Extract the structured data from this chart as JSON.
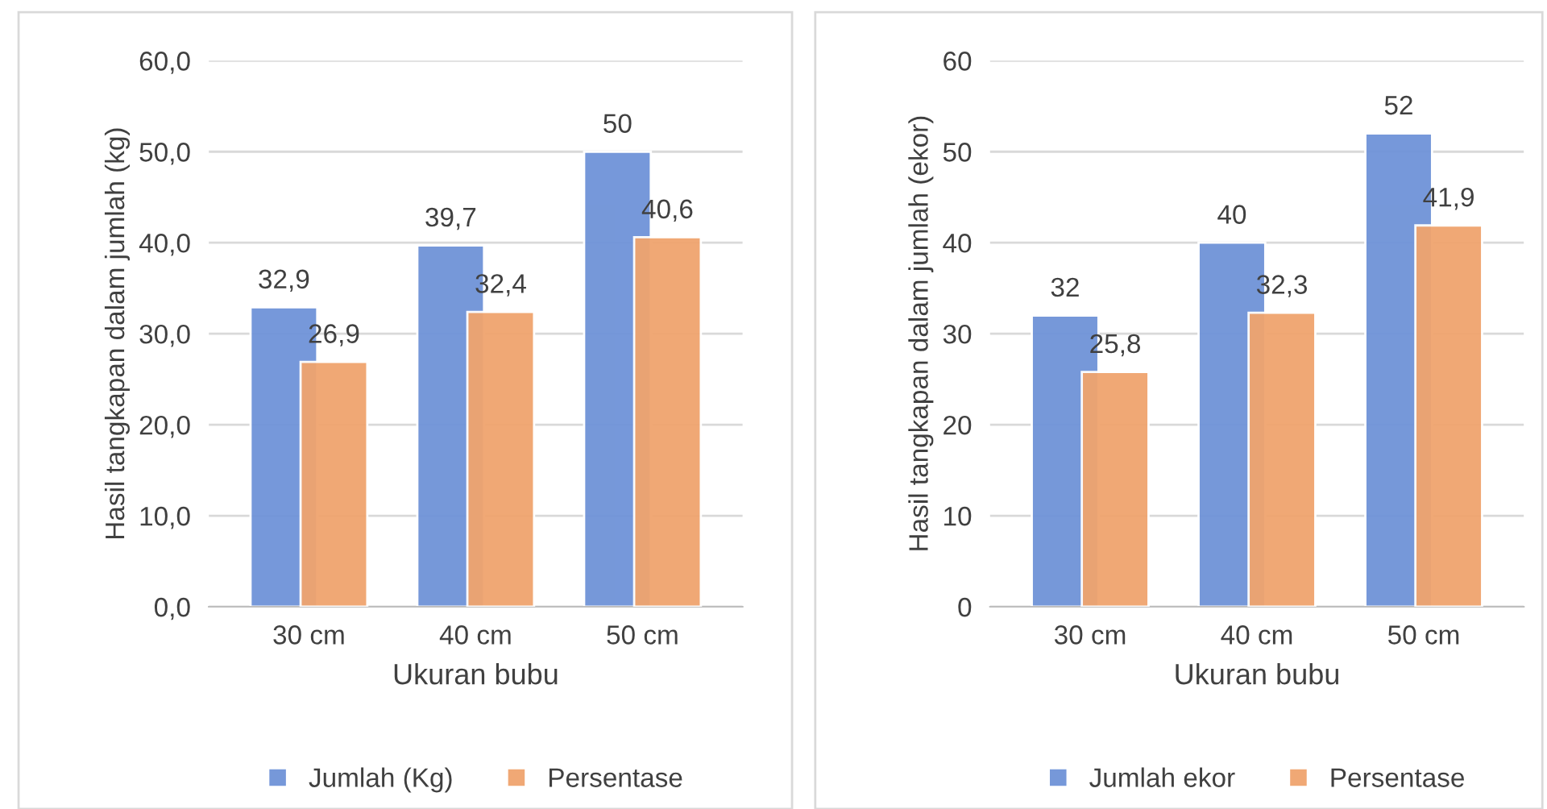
{
  "chart_data": [
    {
      "type": "bar",
      "xlabel": "Ukuran bubu",
      "ylabel": "Hasil tangkapan dalam jumlah (kg)",
      "categories": [
        "30 cm",
        "40 cm",
        "50 cm"
      ],
      "series": [
        {
          "name": "Jumlah (Kg)",
          "color": "#6f93d8",
          "values": [
            32.9,
            39.7,
            50
          ],
          "value_labels": [
            "32,9",
            "39,7",
            "50"
          ]
        },
        {
          "name": "Persentase",
          "color": "#f0a46e",
          "values": [
            26.9,
            32.4,
            40.6
          ],
          "value_labels": [
            "26,9",
            "32,4",
            "40,6"
          ]
        }
      ],
      "ylim": [
        0,
        60
      ],
      "yticks": [
        {
          "value": 0,
          "label": "0,0"
        },
        {
          "value": 10,
          "label": "10,0"
        },
        {
          "value": 20,
          "label": "20,0"
        },
        {
          "value": 30,
          "label": "30,0"
        },
        {
          "value": 40,
          "label": "40,0"
        },
        {
          "value": 50,
          "label": "50,0"
        },
        {
          "value": 60,
          "label": "60,0"
        }
      ],
      "grid": "y",
      "legend": "bottom"
    },
    {
      "type": "bar",
      "xlabel": "Ukuran bubu",
      "ylabel": "Hasil tangkapan dalam jumlah (ekor)",
      "categories": [
        "30 cm",
        "40 cm",
        "50 cm"
      ],
      "series": [
        {
          "name": "Jumlah ekor",
          "color": "#6f93d8",
          "values": [
            32,
            40,
            52
          ],
          "value_labels": [
            "32",
            "40",
            "52"
          ]
        },
        {
          "name": "Persentase",
          "color": "#f0a46e",
          "values": [
            25.8,
            32.3,
            41.9
          ],
          "value_labels": [
            "25,8",
            "32,3",
            "41,9"
          ]
        }
      ],
      "ylim": [
        0,
        60
      ],
      "yticks": [
        0,
        10,
        20,
        30,
        40,
        50,
        60
      ],
      "grid": "y",
      "legend": "bottom"
    }
  ]
}
